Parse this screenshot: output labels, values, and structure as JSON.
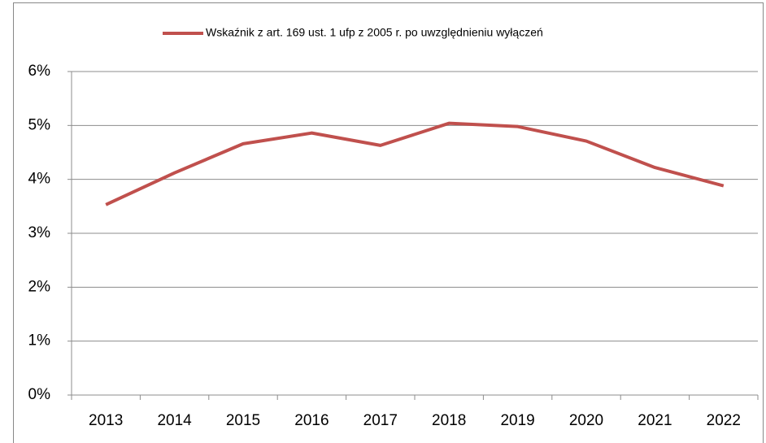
{
  "chart_data": {
    "type": "line",
    "categories": [
      "2013",
      "2014",
      "2015",
      "2016",
      "2017",
      "2018",
      "2019",
      "2020",
      "2021",
      "2022"
    ],
    "series": [
      {
        "name": "Wskaźnik z art. 169 ust. 1 ufp z 2005 r. po uwzględnieniu wyłączeń",
        "color": "#c0504d",
        "values": [
          3.53,
          4.12,
          4.66,
          4.86,
          4.63,
          5.04,
          4.98,
          4.71,
          4.22,
          3.88
        ]
      }
    ],
    "ylim": [
      0,
      6
    ],
    "yticks": [
      {
        "value": 0,
        "label": "0%"
      },
      {
        "value": 1,
        "label": "1%"
      },
      {
        "value": 2,
        "label": "2%"
      },
      {
        "value": 3,
        "label": "3%"
      },
      {
        "value": 4,
        "label": "4%"
      },
      {
        "value": 5,
        "label": "5%"
      },
      {
        "value": 6,
        "label": "6%"
      }
    ],
    "grid": true,
    "legend": "top"
  }
}
